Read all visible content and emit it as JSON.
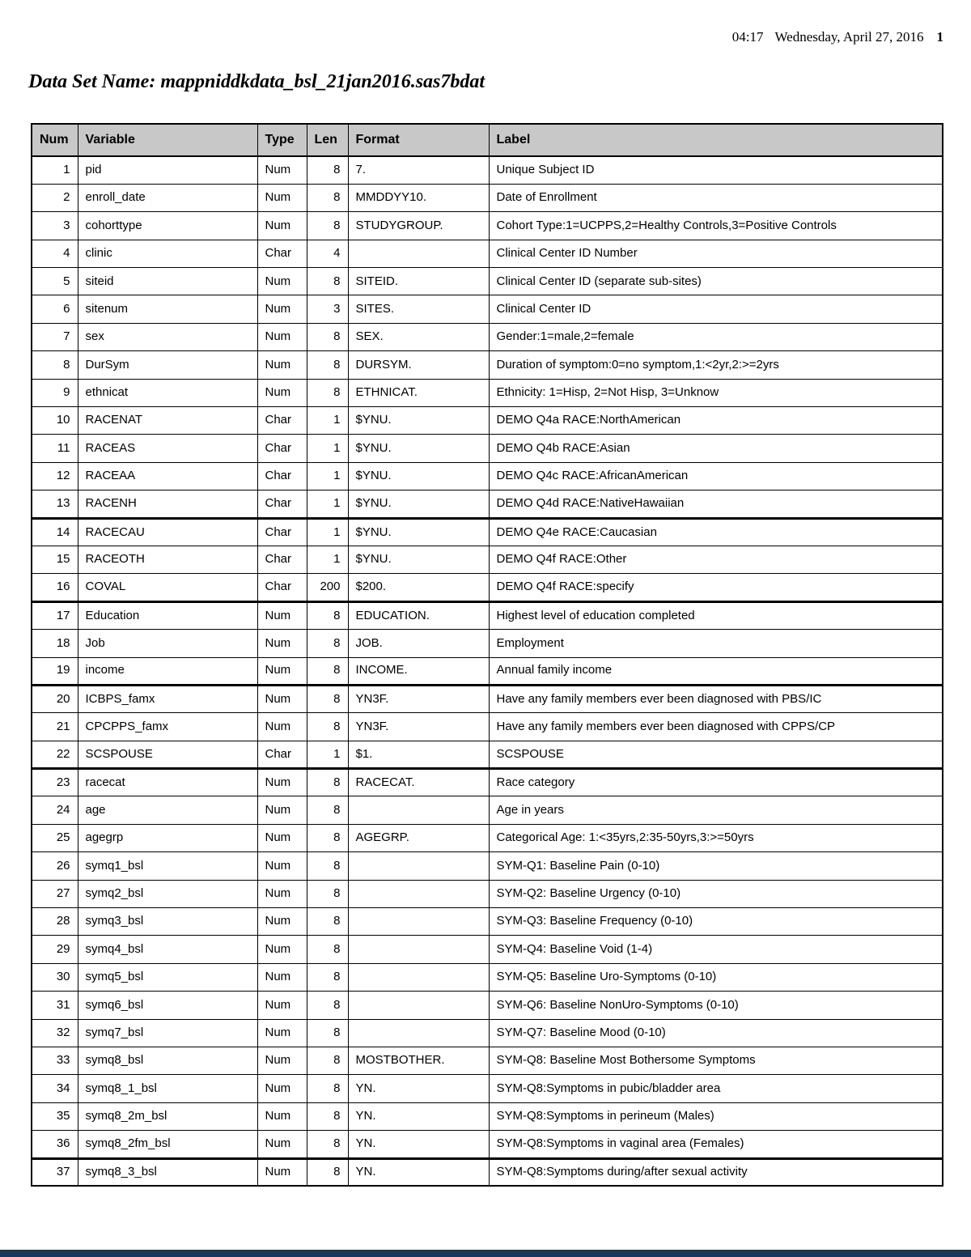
{
  "page_header": {
    "time": "04:17",
    "date": "Wednesday, April 27, 2016",
    "page_number": "1"
  },
  "title": "Data Set Name: mappniddkdata_bsl_21jan2016.sas7bdat",
  "table": {
    "columns": [
      "Num",
      "Variable",
      "Type",
      "Len",
      "Format",
      "Label"
    ],
    "thick_border_after_rows": [
      13,
      16,
      19,
      22,
      36
    ],
    "rows": [
      {
        "num": 1,
        "variable": "pid",
        "type": "Num",
        "len": 8,
        "format": "7.",
        "label": "Unique Subject ID"
      },
      {
        "num": 2,
        "variable": "enroll_date",
        "type": "Num",
        "len": 8,
        "format": "MMDDYY10.",
        "label": "Date of Enrollment"
      },
      {
        "num": 3,
        "variable": "cohorttype",
        "type": "Num",
        "len": 8,
        "format": "STUDYGROUP.",
        "label": "Cohort Type:1=UCPPS,2=Healthy Controls,3=Positive Controls"
      },
      {
        "num": 4,
        "variable": "clinic",
        "type": "Char",
        "len": 4,
        "format": "",
        "label": "Clinical Center ID Number"
      },
      {
        "num": 5,
        "variable": "siteid",
        "type": "Num",
        "len": 8,
        "format": "SITEID.",
        "label": "Clinical Center ID (separate sub-sites)"
      },
      {
        "num": 6,
        "variable": "sitenum",
        "type": "Num",
        "len": 3,
        "format": "SITES.",
        "label": "Clinical Center ID"
      },
      {
        "num": 7,
        "variable": "sex",
        "type": "Num",
        "len": 8,
        "format": "SEX.",
        "label": "Gender:1=male,2=female"
      },
      {
        "num": 8,
        "variable": "DurSym",
        "type": "Num",
        "len": 8,
        "format": "DURSYM.",
        "label": "Duration of symptom:0=no symptom,1:<2yr,2:>=2yrs"
      },
      {
        "num": 9,
        "variable": "ethnicat",
        "type": "Num",
        "len": 8,
        "format": "ETHNICAT.",
        "label": "Ethnicity: 1=Hisp, 2=Not Hisp, 3=Unknow"
      },
      {
        "num": 10,
        "variable": "RACENAT",
        "type": "Char",
        "len": 1,
        "format": "$YNU.",
        "label": "DEMO Q4a RACE:NorthAmerican"
      },
      {
        "num": 11,
        "variable": "RACEAS",
        "type": "Char",
        "len": 1,
        "format": "$YNU.",
        "label": "DEMO Q4b RACE:Asian"
      },
      {
        "num": 12,
        "variable": "RACEAA",
        "type": "Char",
        "len": 1,
        "format": "$YNU.",
        "label": "DEMO Q4c RACE:AfricanAmerican"
      },
      {
        "num": 13,
        "variable": "RACENH",
        "type": "Char",
        "len": 1,
        "format": "$YNU.",
        "label": "DEMO Q4d RACE:NativeHawaiian"
      },
      {
        "num": 14,
        "variable": "RACECAU",
        "type": "Char",
        "len": 1,
        "format": "$YNU.",
        "label": "DEMO Q4e RACE:Caucasian"
      },
      {
        "num": 15,
        "variable": "RACEOTH",
        "type": "Char",
        "len": 1,
        "format": "$YNU.",
        "label": "DEMO Q4f RACE:Other"
      },
      {
        "num": 16,
        "variable": "COVAL",
        "type": "Char",
        "len": 200,
        "format": "$200.",
        "label": "DEMO Q4f RACE:specify"
      },
      {
        "num": 17,
        "variable": "Education",
        "type": "Num",
        "len": 8,
        "format": "EDUCATION.",
        "label": "Highest level of education completed"
      },
      {
        "num": 18,
        "variable": "Job",
        "type": "Num",
        "len": 8,
        "format": "JOB.",
        "label": "Employment"
      },
      {
        "num": 19,
        "variable": "income",
        "type": "Num",
        "len": 8,
        "format": "INCOME.",
        "label": "Annual family income"
      },
      {
        "num": 20,
        "variable": "ICBPS_famx",
        "type": "Num",
        "len": 8,
        "format": "YN3F.",
        "label": "Have any family members ever been diagnosed with PBS/IC"
      },
      {
        "num": 21,
        "variable": "CPCPPS_famx",
        "type": "Num",
        "len": 8,
        "format": "YN3F.",
        "label": "Have any family members ever been diagnosed with CPPS/CP"
      },
      {
        "num": 22,
        "variable": "SCSPOUSE",
        "type": "Char",
        "len": 1,
        "format": "$1.",
        "label": "SCSPOUSE"
      },
      {
        "num": 23,
        "variable": "racecat",
        "type": "Num",
        "len": 8,
        "format": "RACECAT.",
        "label": "Race category"
      },
      {
        "num": 24,
        "variable": "age",
        "type": "Num",
        "len": 8,
        "format": "",
        "label": "Age in years"
      },
      {
        "num": 25,
        "variable": "agegrp",
        "type": "Num",
        "len": 8,
        "format": "AGEGRP.",
        "label": "Categorical Age: 1:<35yrs,2:35-50yrs,3:>=50yrs"
      },
      {
        "num": 26,
        "variable": "symq1_bsl",
        "type": "Num",
        "len": 8,
        "format": "",
        "label": "SYM-Q1: Baseline Pain (0-10)"
      },
      {
        "num": 27,
        "variable": "symq2_bsl",
        "type": "Num",
        "len": 8,
        "format": "",
        "label": "SYM-Q2: Baseline Urgency (0-10)"
      },
      {
        "num": 28,
        "variable": "symq3_bsl",
        "type": "Num",
        "len": 8,
        "format": "",
        "label": "SYM-Q3: Baseline Frequency (0-10)"
      },
      {
        "num": 29,
        "variable": "symq4_bsl",
        "type": "Num",
        "len": 8,
        "format": "",
        "label": "SYM-Q4: Baseline Void (1-4)"
      },
      {
        "num": 30,
        "variable": "symq5_bsl",
        "type": "Num",
        "len": 8,
        "format": "",
        "label": "SYM-Q5: Baseline Uro-Symptoms (0-10)"
      },
      {
        "num": 31,
        "variable": "symq6_bsl",
        "type": "Num",
        "len": 8,
        "format": "",
        "label": "SYM-Q6: Baseline NonUro-Symptoms (0-10)"
      },
      {
        "num": 32,
        "variable": "symq7_bsl",
        "type": "Num",
        "len": 8,
        "format": "",
        "label": "SYM-Q7: Baseline Mood (0-10)"
      },
      {
        "num": 33,
        "variable": "symq8_bsl",
        "type": "Num",
        "len": 8,
        "format": "MOSTBOTHER.",
        "label": "SYM-Q8: Baseline Most Bothersome Symptoms"
      },
      {
        "num": 34,
        "variable": "symq8_1_bsl",
        "type": "Num",
        "len": 8,
        "format": "YN.",
        "label": "SYM-Q8:Symptoms in pubic/bladder area"
      },
      {
        "num": 35,
        "variable": "symq8_2m_bsl",
        "type": "Num",
        "len": 8,
        "format": "YN.",
        "label": "SYM-Q8:Symptoms in perineum (Males)"
      },
      {
        "num": 36,
        "variable": "symq8_2fm_bsl",
        "type": "Num",
        "len": 8,
        "format": "YN.",
        "label": "SYM-Q8:Symptoms in vaginal area (Females)"
      },
      {
        "num": 37,
        "variable": "symq8_3_bsl",
        "type": "Num",
        "len": 8,
        "format": "YN.",
        "label": "SYM-Q8:Symptoms during/after sexual activity"
      }
    ]
  },
  "colors": {
    "header_bg": "#c8c8c8",
    "table_border": "#000000",
    "bottom_bar": "#17375d"
  }
}
